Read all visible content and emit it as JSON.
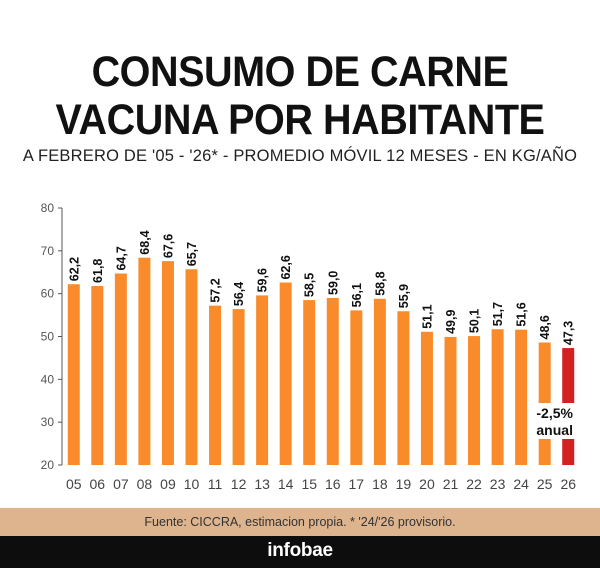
{
  "header": {
    "title_line1": "CONSUMO DE CARNE",
    "title_line2": "VACUNA POR HABITANTE",
    "subtitle": "A FEBRERO DE '05 - '26* - PROMEDIO MÓVIL 12 MESES - EN KG/AÑO"
  },
  "chart_data": {
    "type": "bar",
    "categories": [
      "05",
      "06",
      "07",
      "08",
      "09",
      "10",
      "11",
      "12",
      "13",
      "14",
      "15",
      "16",
      "17",
      "18",
      "19",
      "20",
      "21",
      "22",
      "23",
      "24",
      "25",
      "26"
    ],
    "values": [
      62.2,
      61.8,
      64.7,
      68.4,
      67.6,
      65.7,
      57.2,
      56.4,
      59.6,
      62.6,
      58.5,
      59.0,
      56.1,
      58.8,
      55.9,
      51.1,
      49.9,
      50.1,
      51.7,
      51.6,
      48.6,
      47.3
    ],
    "value_labels": [
      "62,2",
      "61,8",
      "64,7",
      "68,4",
      "67,6",
      "65,7",
      "57,2",
      "56,4",
      "59,6",
      "62,6",
      "58,5",
      "59,0",
      "56,1",
      "58,8",
      "55,9",
      "51,1",
      "49,9",
      "50,1",
      "51,7",
      "51,6",
      "48,6",
      "47,3"
    ],
    "ylim": [
      20,
      80
    ],
    "yticks": [
      20,
      30,
      40,
      50,
      60,
      70,
      80
    ],
    "grid": false,
    "colors": {
      "bar": "#f98b2b",
      "highlight": "#d32020"
    },
    "highlight_index": 21,
    "annotation": {
      "line1": "-2,5%",
      "line2": "anual"
    }
  },
  "source": "Fuente: CICCRA, estimacion propia. * '24/'26 provisorio.",
  "footer": {
    "brand": "infobae"
  }
}
